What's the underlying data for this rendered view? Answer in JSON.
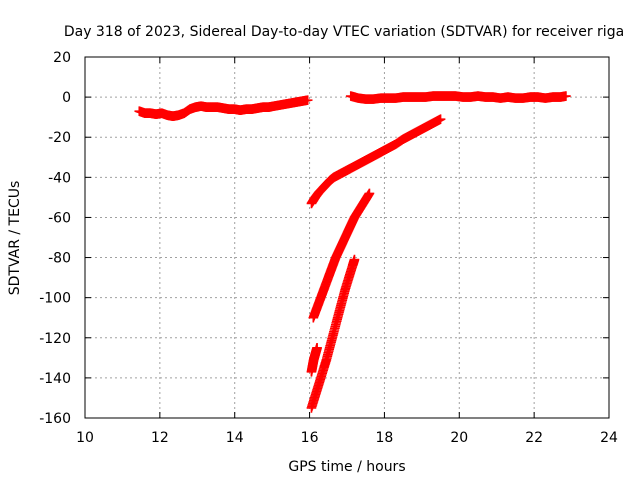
{
  "chart_data": {
    "type": "scatter",
    "title": "Day 318 of 2023, Sidereal Day-to-day VTEC variation (SDTVAR) for receiver riga",
    "xlabel": "GPS time / hours",
    "ylabel": "SDTVAR / TECUs",
    "xlim": [
      10,
      24
    ],
    "ylim": [
      -160,
      20
    ],
    "xticks": [
      10,
      12,
      14,
      16,
      18,
      20,
      22,
      24
    ],
    "yticks": [
      20,
      0,
      -20,
      -40,
      -60,
      -80,
      -100,
      -120,
      -140,
      -160
    ],
    "grid": true,
    "marker": "plus",
    "color": "#ff0000",
    "series": [
      {
        "x": [
          11.45,
          11.6,
          11.75,
          11.9,
          12.05,
          12.2,
          12.35,
          12.5,
          12.65,
          12.8,
          12.95,
          13.1,
          13.25,
          13.4,
          13.55,
          13.7,
          13.85,
          14.0,
          14.15,
          14.3,
          14.45,
          14.6,
          14.75,
          14.9,
          15.05,
          15.2,
          15.35,
          15.5,
          15.65,
          15.8,
          15.95
        ],
        "y": [
          -7,
          -8,
          -8,
          -8.5,
          -8,
          -9,
          -9.5,
          -9,
          -8,
          -6,
          -5,
          -4.5,
          -5,
          -5,
          -5,
          -5.5,
          -6,
          -6,
          -6.5,
          -6,
          -6,
          -5.5,
          -5,
          -5,
          -4.5,
          -4,
          -3.5,
          -3,
          -2.5,
          -2,
          -1.5
        ]
      },
      {
        "x": [
          17.1,
          17.3,
          17.5,
          17.7,
          17.9,
          18.1,
          18.3,
          18.5,
          18.7,
          18.9,
          19.1,
          19.3,
          19.5,
          19.7,
          19.9,
          20.1,
          20.3,
          20.5,
          20.7,
          20.9,
          21.1,
          21.3,
          21.5,
          21.7,
          21.9,
          22.1,
          22.3,
          22.5,
          22.7,
          22.85
        ],
        "y": [
          0.5,
          -0.5,
          -1,
          -1,
          -0.5,
          -0.5,
          -0.5,
          0,
          0,
          0,
          0,
          0.5,
          0.5,
          0.5,
          0.5,
          0,
          0,
          0.5,
          0,
          0,
          -0.5,
          0,
          -0.5,
          -0.5,
          0,
          0,
          -0.5,
          0,
          0,
          0.5
        ]
      },
      {
        "x": [
          16.05,
          16.15,
          16.25,
          16.35,
          16.45,
          16.55,
          16.65,
          16.8,
          16.95,
          17.1,
          17.3,
          17.5,
          17.7,
          17.9,
          18.1,
          18.3,
          18.5,
          18.7,
          18.9,
          19.1,
          19.3,
          19.5
        ],
        "y": [
          -53,
          -50,
          -47.5,
          -45.5,
          -43.5,
          -41.5,
          -40,
          -38.5,
          -37,
          -35.5,
          -33.5,
          -31.5,
          -29.5,
          -27.5,
          -25.5,
          -23.5,
          -21,
          -19,
          -17,
          -15,
          -13,
          -11
        ]
      },
      {
        "x": [
          16.1,
          16.2,
          16.3,
          16.4,
          16.5,
          16.6,
          16.7,
          16.8,
          16.9,
          17.0,
          17.1,
          17.2,
          17.3,
          17.4,
          17.5,
          17.6
        ],
        "y": [
          -110,
          -105,
          -100,
          -95,
          -90,
          -85,
          -80,
          -76,
          -72,
          -68,
          -64,
          -60,
          -57,
          -54,
          -51,
          -48
        ]
      },
      {
        "x": [
          16.05,
          16.15,
          16.25,
          16.35,
          16.45,
          16.55,
          16.65,
          16.75,
          16.85,
          16.95,
          17.05,
          17.15,
          17.2
        ],
        "y": [
          -155,
          -149,
          -143,
          -137,
          -131,
          -124,
          -117,
          -110,
          -103,
          -96,
          -90,
          -84,
          -81
        ]
      },
      {
        "x": [
          16.05,
          16.08,
          16.11,
          16.14,
          16.17,
          16.2
        ],
        "y": [
          -137,
          -134,
          -131,
          -129,
          -127,
          -125
        ]
      }
    ]
  }
}
